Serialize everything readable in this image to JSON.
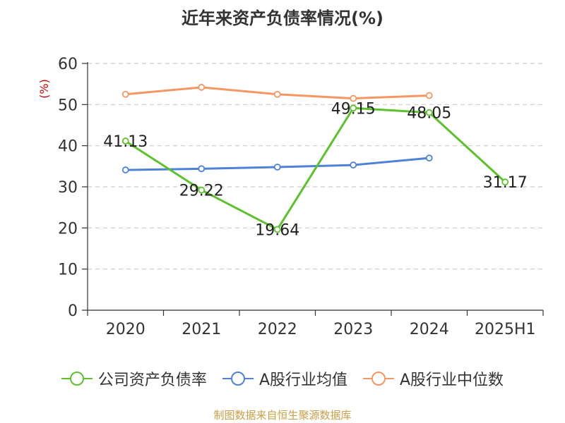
{
  "chart_data": {
    "type": "line",
    "title": "近年来资产负债率情况(%)",
    "ylabel": "(%)",
    "categories": [
      "2020",
      "2021",
      "2022",
      "2023",
      "2024",
      "2025H1"
    ],
    "ylim": [
      0,
      60
    ],
    "yticks": [
      0,
      10,
      20,
      30,
      40,
      50,
      60
    ],
    "grid": true,
    "legend_position": "bottom",
    "series": [
      {
        "name": "公司资产负债率",
        "color": "#5cc22b",
        "values": [
          41.13,
          29.22,
          19.64,
          49.15,
          48.05,
          31.17
        ],
        "labels": [
          "41.13",
          "29.22",
          "19.64",
          "49.15",
          "48.05",
          "31.17"
        ]
      },
      {
        "name": "A股行业均值",
        "color": "#4f81d8",
        "values": [
          34.1,
          34.4,
          34.8,
          35.3,
          37.0,
          null
        ]
      },
      {
        "name": "A股行业中位数",
        "color": "#f59762",
        "values": [
          52.5,
          54.2,
          52.5,
          51.5,
          52.2,
          null
        ]
      }
    ]
  },
  "source_note": "制图数据来自恒生聚源数据库"
}
